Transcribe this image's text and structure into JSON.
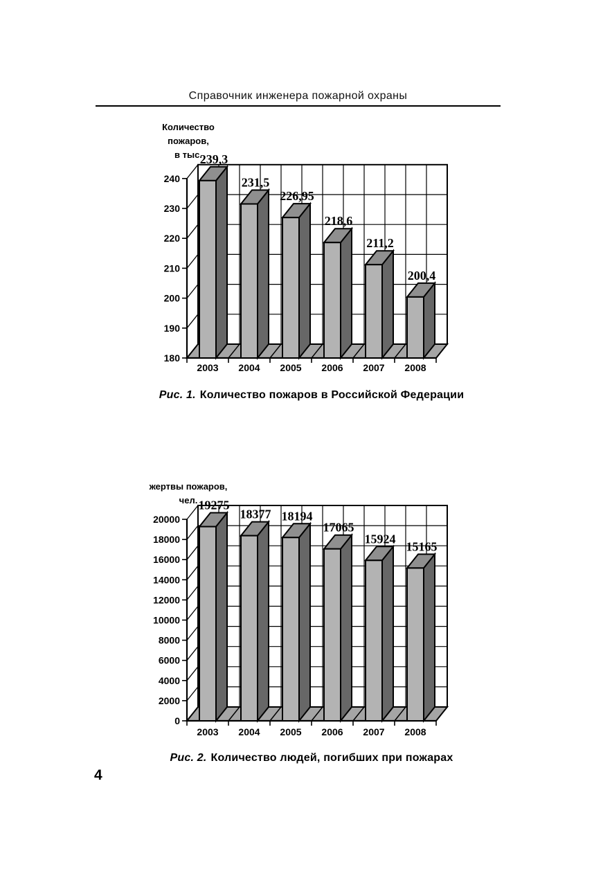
{
  "header": {
    "title": "Справочник инженера пожарной охраны"
  },
  "page": {
    "number": "4"
  },
  "figure1": {
    "caption_prefix": "Рис. 1.",
    "caption_text": "Количество пожаров в Российской Федерации"
  },
  "figure2": {
    "caption_prefix": "Рис. 2.",
    "caption_text": "Количество людей, погибших при пожарах"
  },
  "chart_data": [
    {
      "type": "bar",
      "style": "3d-column",
      "title_lines": [
        "Количество",
        "пожаров,",
        "в тыс."
      ],
      "categories": [
        "2003",
        "2004",
        "2005",
        "2006",
        "2007",
        "2008"
      ],
      "values": [
        239.3,
        231.5,
        226.95,
        218.6,
        211.2,
        200.4
      ],
      "value_labels": [
        "239,3",
        "231,5",
        "226,95",
        "218,6",
        "211,2",
        "200,4"
      ],
      "ylim": [
        180,
        240
      ],
      "ytick_step": 10,
      "ytick_labels": [
        "180",
        "190",
        "200",
        "210",
        "220",
        "230",
        "240"
      ],
      "grid": true,
      "legend": "none",
      "colors": {
        "front": "#b3b3b3",
        "side": "#676767",
        "top": "#8f8f8f",
        "floor": "#a5a5a5",
        "wall": "#ffffff",
        "outline": "#000000"
      }
    },
    {
      "type": "bar",
      "style": "3d-column",
      "title_lines": [
        "жертвы пожаров,",
        "чел."
      ],
      "categories": [
        "2003",
        "2004",
        "2005",
        "2006",
        "2007",
        "2008"
      ],
      "values": [
        19275,
        18377,
        18194,
        17065,
        15924,
        15165
      ],
      "value_labels": [
        "19275",
        "18377",
        "18194",
        "17065",
        "15924",
        "15165"
      ],
      "ylim": [
        0,
        20000
      ],
      "ytick_step": 2000,
      "ytick_labels": [
        "0",
        "2000",
        "4000",
        "6000",
        "8000",
        "10000",
        "12000",
        "14000",
        "16000",
        "18000",
        "20000"
      ],
      "grid": true,
      "legend": "none",
      "colors": {
        "front": "#b3b3b3",
        "side": "#676767",
        "top": "#8f8f8f",
        "floor": "#a5a5a5",
        "wall": "#ffffff",
        "outline": "#000000"
      }
    }
  ]
}
